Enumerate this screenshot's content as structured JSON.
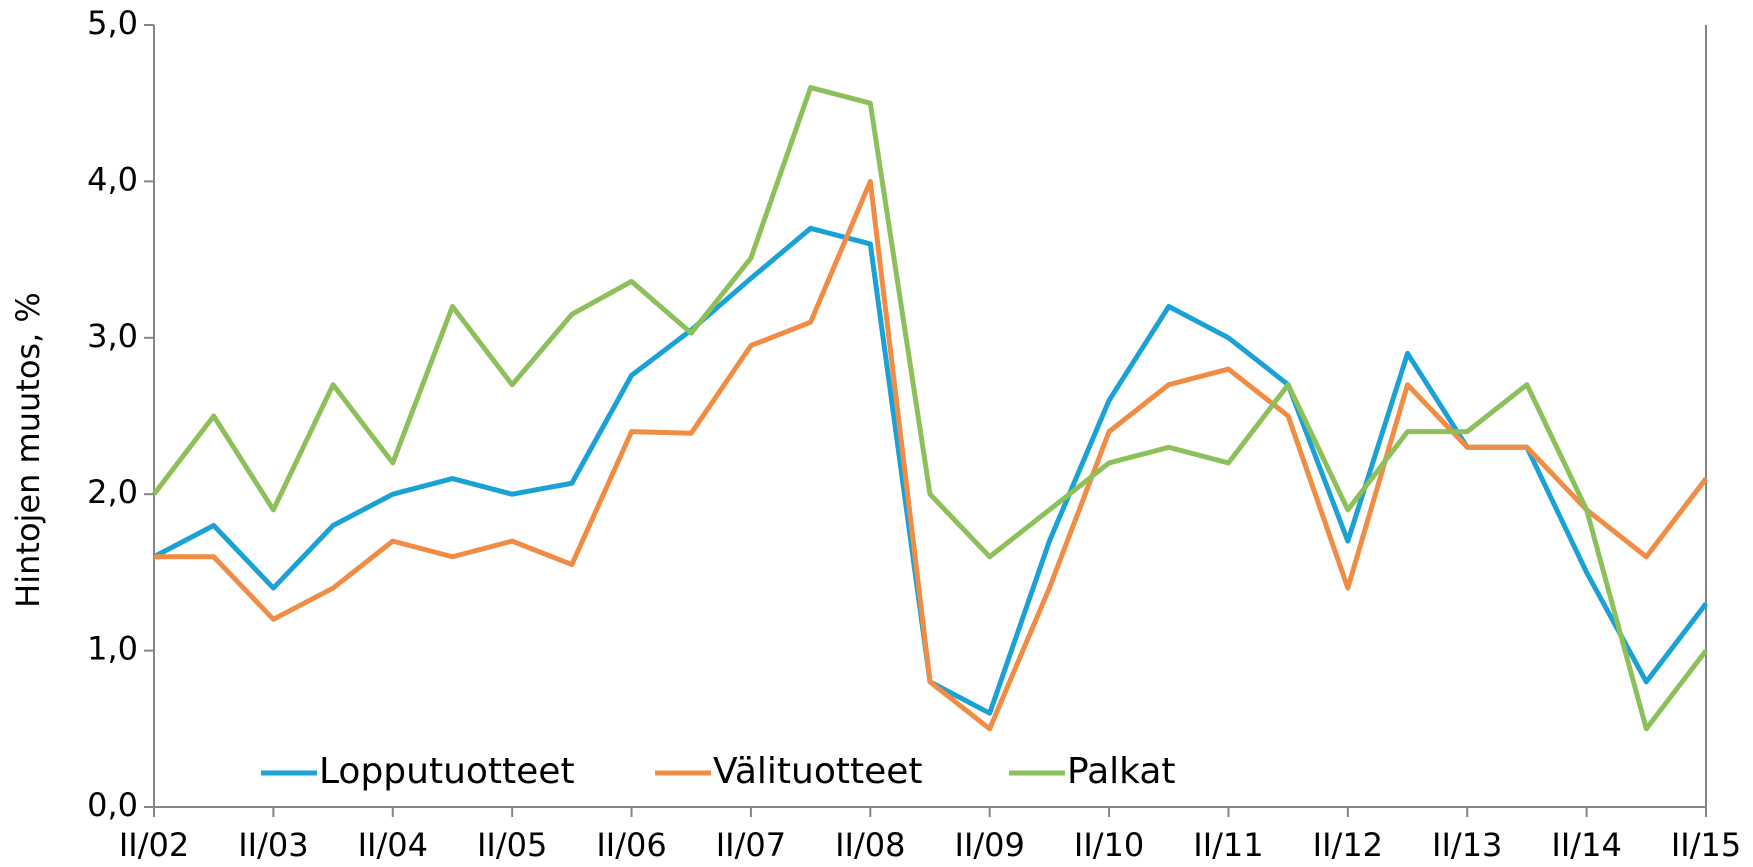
{
  "chart_data": {
    "type": "line",
    "y_label": "Hintojen muutos, %",
    "categories": [
      "II/02",
      null,
      "II/03",
      null,
      "II/04",
      null,
      "II/05",
      null,
      "II/06",
      null,
      "II/07",
      null,
      "II/08",
      null,
      "II/09",
      null,
      "II/10",
      null,
      "II/11",
      null,
      "II/12",
      null,
      "II/13",
      null,
      "II/14",
      null,
      "II/15"
    ],
    "series": [
      {
        "name": "Lopputuotteet",
        "color": "#1aa1d6",
        "values": [
          1.6,
          1.8,
          1.4,
          1.8,
          2.0,
          2.1,
          2.0,
          2.07,
          2.76,
          3.05,
          3.38,
          3.7,
          3.6,
          0.8,
          0.6,
          1.7,
          2.6,
          3.2,
          3.0,
          2.7,
          1.7,
          2.9,
          2.3,
          2.3,
          1.5,
          0.8,
          1.3
        ]
      },
      {
        "name": "Välituotteet",
        "color": "#f08c43",
        "values": [
          1.6,
          1.6,
          1.2,
          1.4,
          1.7,
          1.6,
          1.7,
          1.55,
          2.4,
          2.39,
          2.95,
          3.1,
          4.0,
          0.8,
          0.5,
          1.4,
          2.4,
          2.7,
          2.8,
          2.5,
          1.4,
          2.7,
          2.3,
          2.3,
          1.9,
          1.6,
          2.1
        ]
      },
      {
        "name": "Palkat",
        "color": "#8dc05a",
        "values": [
          2.0,
          2.5,
          1.9,
          2.7,
          2.2,
          3.2,
          2.7,
          3.15,
          3.36,
          3.03,
          3.51,
          4.6,
          4.5,
          2.0,
          1.6,
          1.9,
          2.2,
          2.3,
          2.2,
          2.7,
          1.9,
          2.4,
          2.4,
          2.7,
          1.9,
          0.5,
          1.0
        ]
      }
    ],
    "ylim": [
      0,
      5
    ],
    "yticks": [
      {
        "value": 0,
        "label": "0,0"
      },
      {
        "value": 1,
        "label": "1,0"
      },
      {
        "value": 2,
        "label": "2,0"
      },
      {
        "value": 3,
        "label": "3,0"
      },
      {
        "value": 4,
        "label": "4,0"
      },
      {
        "value": 5,
        "label": "5,0"
      }
    ],
    "legend": "bottom-left"
  }
}
